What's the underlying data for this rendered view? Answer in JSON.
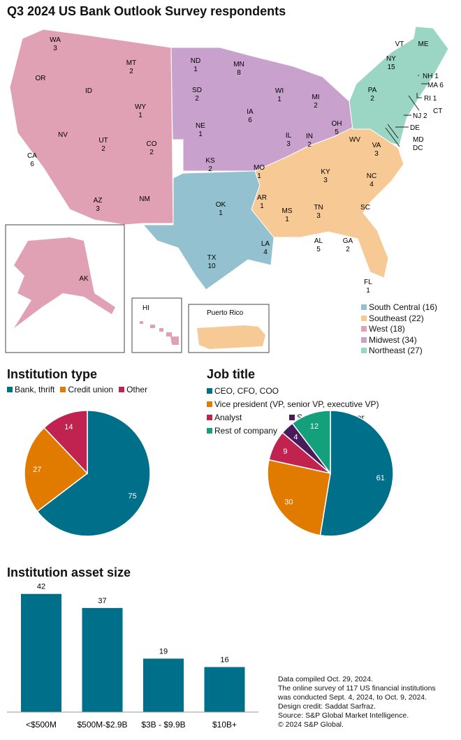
{
  "title": "Q3 2024 US Bank Outlook Survey respondents",
  "map": {
    "regions": [
      {
        "name": "South Central",
        "count": 16,
        "label": "South Central (16)",
        "color": "#94c1cf"
      },
      {
        "name": "Southeast",
        "count": 22,
        "label": "Southeast (22)",
        "color": "#f7c995"
      },
      {
        "name": "West",
        "count": 18,
        "label": "West (18)",
        "color": "#e1a1b5"
      },
      {
        "name": "Midwest",
        "count": 34,
        "label": "Midwest (34)",
        "color": "#c9a1cd"
      },
      {
        "name": "Northeast",
        "count": 27,
        "label": "Northeast (27)",
        "color": "#9bd6c4"
      }
    ],
    "states": [
      {
        "s": "WA",
        "n": "3"
      },
      {
        "s": "OR",
        "n": ""
      },
      {
        "s": "ID",
        "n": ""
      },
      {
        "s": "MT",
        "n": "2"
      },
      {
        "s": "WY",
        "n": "1"
      },
      {
        "s": "NV",
        "n": ""
      },
      {
        "s": "CA",
        "n": "6"
      },
      {
        "s": "UT",
        "n": "2"
      },
      {
        "s": "CO",
        "n": "2"
      },
      {
        "s": "AZ",
        "n": "3"
      },
      {
        "s": "NM",
        "n": ""
      },
      {
        "s": "ND",
        "n": "1"
      },
      {
        "s": "SD",
        "n": "2"
      },
      {
        "s": "NE",
        "n": "1"
      },
      {
        "s": "KS",
        "n": "2"
      },
      {
        "s": "MN",
        "n": "8"
      },
      {
        "s": "IA",
        "n": "6"
      },
      {
        "s": "MO",
        "n": "1"
      },
      {
        "s": "WI",
        "n": "1"
      },
      {
        "s": "IL",
        "n": "3"
      },
      {
        "s": "MI",
        "n": "2"
      },
      {
        "s": "IN",
        "n": "2"
      },
      {
        "s": "OH",
        "n": "5"
      },
      {
        "s": "OK",
        "n": "1"
      },
      {
        "s": "TX",
        "n": "10"
      },
      {
        "s": "AR",
        "n": "1"
      },
      {
        "s": "LA",
        "n": "4"
      },
      {
        "s": "KY",
        "n": "3"
      },
      {
        "s": "TN",
        "n": "3"
      },
      {
        "s": "MS",
        "n": "1"
      },
      {
        "s": "AL",
        "n": "5"
      },
      {
        "s": "GA",
        "n": "2"
      },
      {
        "s": "FL",
        "n": "1"
      },
      {
        "s": "SC",
        "n": ""
      },
      {
        "s": "NC",
        "n": "4"
      },
      {
        "s": "VA",
        "n": "3"
      },
      {
        "s": "WV",
        "n": ""
      },
      {
        "s": "PA",
        "n": "2"
      },
      {
        "s": "NY",
        "n": "15"
      },
      {
        "s": "VT",
        "n": ""
      },
      {
        "s": "ME",
        "n": ""
      },
      {
        "s": "NH",
        "n": "1"
      },
      {
        "s": "MA",
        "n": "6"
      },
      {
        "s": "RI",
        "n": "1"
      },
      {
        "s": "CT",
        "n": ""
      },
      {
        "s": "NJ",
        "n": "2"
      },
      {
        "s": "DE",
        "n": ""
      },
      {
        "s": "MD",
        "n": ""
      },
      {
        "s": "DC",
        "n": ""
      }
    ],
    "insets": {
      "ak": "AK",
      "hi": "HI",
      "pr": "Puerto Rico"
    }
  },
  "chart_data": [
    {
      "type": "pie",
      "title": "Institution type",
      "legend": [
        "Bank, thrift",
        "Credit union",
        "Other"
      ],
      "values": [
        75,
        27,
        14
      ],
      "colors": [
        "#006f8a",
        "#e07b00",
        "#c0234f"
      ]
    },
    {
      "type": "pie",
      "title": "Job title",
      "legend": [
        "CEO, CFO, COO",
        "Vice president (VP, senior VP, executive VP)",
        "Analyst",
        "Senior loan officer",
        "Rest of company"
      ],
      "values": [
        61,
        30,
        9,
        4,
        12
      ],
      "colors": [
        "#006f8a",
        "#e07b00",
        "#c0234f",
        "#4a1a5c",
        "#14a07a"
      ]
    },
    {
      "type": "bar",
      "title": "Institution asset size",
      "categories": [
        "<$500M",
        "$500M-$2.9B",
        "$3B - $9.9B",
        "$10B+"
      ],
      "values": [
        42,
        37,
        19,
        16
      ],
      "color": "#006f8a"
    }
  ],
  "notes": [
    "Data compiled Oct. 29, 2024.",
    "The online survey of 117 US financial institutions",
    "was conducted Sept. 4, 2024, to Oct. 9, 2024.",
    "Design credit: Saddat Sarfraz.",
    "Source: S&P Global Market Intelligence.",
    "© 2024 S&P Global."
  ]
}
